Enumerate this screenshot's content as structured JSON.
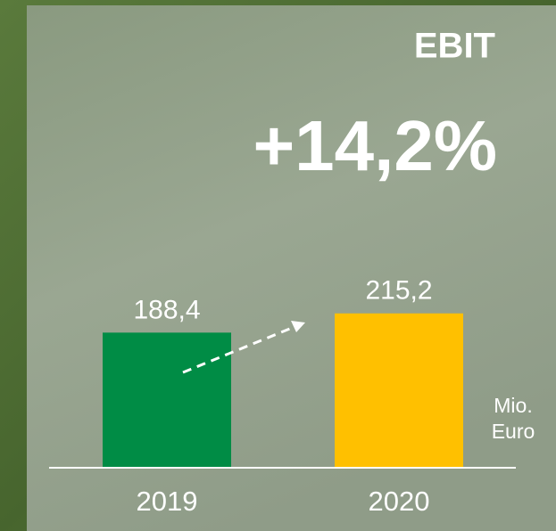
{
  "chart_data": {
    "type": "bar",
    "title": "EBIT",
    "annotation": "+14,2%",
    "unit": "Mio. Euro",
    "categories": [
      "2019",
      "2020"
    ],
    "values": [
      188.4,
      215.2
    ],
    "value_labels": [
      "188,4",
      "215,2"
    ],
    "colors": [
      "#008c45",
      "#ffc000"
    ]
  }
}
